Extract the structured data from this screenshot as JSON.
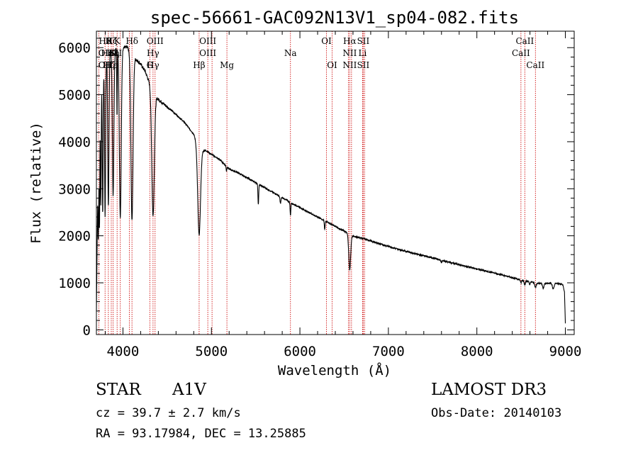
{
  "chart_data": {
    "type": "line",
    "title": "spec-56661-GAC092N13V1_sp04-082.fits",
    "xlabel": "Wavelength (Å)",
    "ylabel": "Flux (relative)",
    "xlim": [
      3700,
      9100
    ],
    "ylim": [
      -100,
      6350
    ],
    "xticks": [
      4000,
      5000,
      6000,
      7000,
      8000,
      9000
    ],
    "xtick_labels": [
      "4000",
      "5000",
      "6000",
      "7000",
      "8000",
      "9000"
    ],
    "yticks": [
      0,
      1000,
      2000,
      3000,
      4000,
      5000,
      6000
    ],
    "ytick_labels": [
      "0",
      "1000",
      "2000",
      "3000",
      "4000",
      "5000",
      "6000"
    ],
    "continuum": [
      [
        3700,
        400
      ],
      [
        3715,
        3000
      ],
      [
        3750,
        5300
      ],
      [
        3800,
        5750
      ],
      [
        3850,
        5900
      ],
      [
        3900,
        5950
      ],
      [
        3950,
        6000
      ],
      [
        4000,
        6020
      ],
      [
        4050,
        6000
      ],
      [
        4100,
        5850
      ],
      [
        4150,
        5750
      ],
      [
        4200,
        5650
      ],
      [
        4250,
        5500
      ],
      [
        4300,
        5250
      ],
      [
        4350,
        5000
      ],
      [
        4400,
        4900
      ],
      [
        4450,
        4820
      ],
      [
        4500,
        4740
      ],
      [
        4600,
        4580
      ],
      [
        4700,
        4400
      ],
      [
        4800,
        4160
      ],
      [
        4850,
        3900
      ],
      [
        4900,
        3820
      ],
      [
        4950,
        3800
      ],
      [
        5000,
        3730
      ],
      [
        5100,
        3610
      ],
      [
        5200,
        3420
      ],
      [
        5300,
        3340
      ],
      [
        5500,
        3130
      ],
      [
        5700,
        2920
      ],
      [
        5900,
        2700
      ],
      [
        6100,
        2500
      ],
      [
        6300,
        2300
      ],
      [
        6500,
        2100
      ],
      [
        6600,
        1990
      ],
      [
        6700,
        1950
      ],
      [
        6900,
        1830
      ],
      [
        7100,
        1720
      ],
      [
        7300,
        1620
      ],
      [
        7500,
        1530
      ],
      [
        7700,
        1430
      ],
      [
        7900,
        1340
      ],
      [
        8100,
        1250
      ],
      [
        8300,
        1160
      ],
      [
        8500,
        1060
      ],
      [
        8700,
        990
      ],
      [
        8900,
        990
      ],
      [
        8970,
        960
      ],
      [
        8990,
        800
      ],
      [
        9000,
        150
      ]
    ],
    "absorption_features": [
      {
        "wave": 3722,
        "width": 6,
        "depth": 0.45
      },
      {
        "wave": 3735,
        "width": 5,
        "depth": 0.5
      },
      {
        "wave": 3750,
        "width": 6,
        "depth": 0.5
      },
      {
        "wave": 3771,
        "width": 7,
        "depth": 0.55
      },
      {
        "wave": 3798,
        "width": 8,
        "depth": 0.58
      },
      {
        "wave": 3835,
        "width": 10,
        "depth": 0.55
      },
      {
        "wave": 3889,
        "width": 12,
        "depth": 0.52
      },
      {
        "wave": 3933,
        "width": 4,
        "depth": 0.25
      },
      {
        "wave": 3970,
        "width": 15,
        "depth": 0.6
      },
      {
        "wave": 4102,
        "width": 17,
        "depth": 0.6
      },
      {
        "wave": 4340,
        "width": 20,
        "depth": 0.52
      },
      {
        "wave": 4861,
        "width": 22,
        "depth": 0.48
      },
      {
        "wave": 5170,
        "width": 5,
        "depth": 0.03
      },
      {
        "wave": 5530,
        "width": 6,
        "depth": 0.14
      },
      {
        "wave": 5780,
        "width": 8,
        "depth": 0.05
      },
      {
        "wave": 5893,
        "width": 6,
        "depth": 0.1
      },
      {
        "wave": 6280,
        "width": 6,
        "depth": 0.08
      },
      {
        "wave": 6563,
        "width": 15,
        "depth": 0.37
      },
      {
        "wave": 7600,
        "width": 10,
        "depth": 0.03
      },
      {
        "wave": 8498,
        "width": 8,
        "depth": 0.06
      },
      {
        "wave": 8542,
        "width": 10,
        "depth": 0.08
      },
      {
        "wave": 8598,
        "width": 9,
        "depth": 0.06
      },
      {
        "wave": 8662,
        "width": 12,
        "depth": 0.1
      },
      {
        "wave": 8750,
        "width": 12,
        "depth": 0.1
      },
      {
        "wave": 8863,
        "width": 14,
        "depth": 0.12
      }
    ],
    "lines": [
      {
        "wave": 3727,
        "top": "",
        "mid": "",
        "bottom": ""
      },
      {
        "wave": 3798,
        "top": "Hθ",
        "mid": "OII",
        "bottom": "OII"
      },
      {
        "wave": 3835,
        "top": "",
        "mid": "",
        "bottom": ""
      },
      {
        "wave": 3868,
        "top": "Hζ",
        "mid": "",
        "bottom": "Hε"
      },
      {
        "wave": 3889,
        "top": "",
        "mid": "Hη",
        "bottom": ""
      },
      {
        "wave": 3934,
        "top": "K",
        "mid": "",
        "bottom": ""
      },
      {
        "wave": 3970,
        "top": "",
        "mid": "",
        "bottom": ""
      },
      {
        "wave": 4072,
        "top": "",
        "mid": "",
        "bottom": ""
      },
      {
        "wave": 4102,
        "top": "Hδ",
        "mid": "",
        "bottom": ""
      },
      {
        "wave": 4304,
        "top": "",
        "mid": "",
        "bottom": "G"
      },
      {
        "wave": 4340,
        "top": "",
        "mid": "Hγ",
        "bottom": ""
      },
      {
        "wave": 4363,
        "top": "OIII",
        "mid": "",
        "bottom": ""
      },
      {
        "wave": 4861,
        "top": "",
        "mid": "",
        "bottom": "Hβ"
      },
      {
        "wave": 4959,
        "top": "OIII",
        "mid": "OIII",
        "bottom": ""
      },
      {
        "wave": 5007,
        "top": "",
        "mid": "",
        "bottom": ""
      },
      {
        "wave": 5175,
        "top": "",
        "mid": "",
        "bottom": "Mg"
      },
      {
        "wave": 5893,
        "top": "",
        "mid": "Na",
        "bottom": ""
      },
      {
        "wave": 6300,
        "top": "OI",
        "mid": "",
        "bottom": ""
      },
      {
        "wave": 6364,
        "top": "",
        "mid": "",
        "bottom": "OI"
      },
      {
        "wave": 6548,
        "top": "",
        "mid": "",
        "bottom": ""
      },
      {
        "wave": 6563,
        "top": "Hα",
        "mid": "NII",
        "bottom": "NII"
      },
      {
        "wave": 6583,
        "top": "",
        "mid": "",
        "bottom": ""
      },
      {
        "wave": 6708,
        "top": "",
        "mid": "Li",
        "bottom": ""
      },
      {
        "wave": 6716,
        "top": "SII",
        "mid": "",
        "bottom": "SII"
      },
      {
        "wave": 6731,
        "top": "",
        "mid": "",
        "bottom": ""
      },
      {
        "wave": 8498,
        "top": "",
        "mid": "CaII",
        "bottom": ""
      },
      {
        "wave": 8542,
        "top": "CaII",
        "mid": "",
        "bottom": ""
      },
      {
        "wave": 8662,
        "top": "",
        "mid": "",
        "bottom": "CaII"
      }
    ],
    "overlay_labels": [
      {
        "wave": 3850,
        "row": "top",
        "text": "K"
      },
      {
        "wave": 3818,
        "row": "mid",
        "text": "Hε"
      },
      {
        "wave": 3885,
        "row": "mid",
        "text": "K"
      },
      {
        "wave": 3920,
        "row": "mid",
        "text": "SII"
      },
      {
        "wave": 3840,
        "row": "bottom",
        "text": "Hζ"
      },
      {
        "wave": 4340,
        "row": "bottom",
        "text": "Hγ"
      }
    ]
  },
  "footer": {
    "object_class": "STAR",
    "subclass": "A1V",
    "cz": "cz = 39.7 ± 2.7 km/s",
    "coords": "RA =  93.17984, DEC =  13.25885",
    "survey": "LAMOST DR3",
    "obs_date": "Obs-Date: 20140103"
  }
}
